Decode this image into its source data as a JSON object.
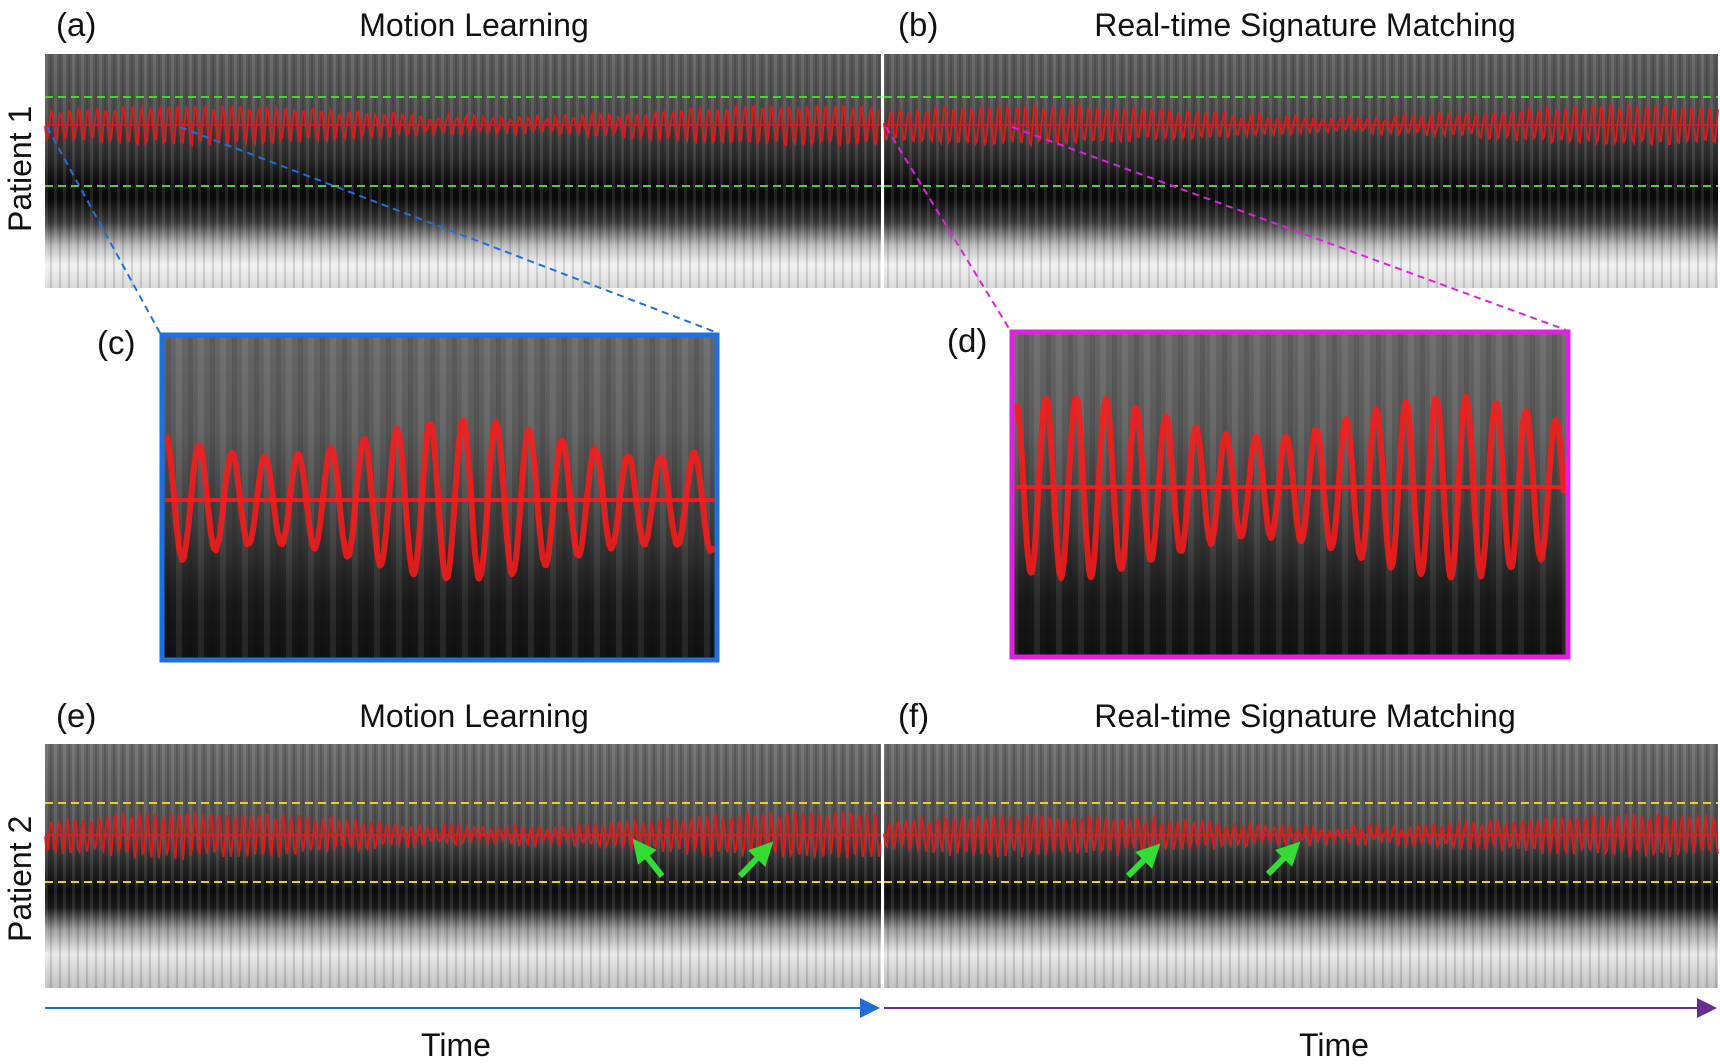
{
  "figure": {
    "colors": {
      "trace": "#e31a1c",
      "guide_patient1": "#4cd137",
      "guide_patient2": "#e8d21a",
      "zoom_c": "#1e6fe0",
      "zoom_d": "#e020e0",
      "arrow": "#33dd33",
      "time_axis_left": "#1f6fd6",
      "time_axis_right": "#6a2c91"
    },
    "panels": [
      {
        "id": "a",
        "label": "(a)",
        "title": "Motion Learning"
      },
      {
        "id": "b",
        "label": "(b)",
        "title": "Real-time Signature Matching"
      },
      {
        "id": "c",
        "label": "(c)",
        "title": ""
      },
      {
        "id": "d",
        "label": "(d)",
        "title": ""
      },
      {
        "id": "e",
        "label": "(e)",
        "title": "Motion Learning"
      },
      {
        "id": "f",
        "label": "(f)",
        "title": "Real-time Signature Matching"
      }
    ],
    "rows": [
      {
        "label": "Patient 1"
      },
      {
        "label": "Patient 2"
      }
    ],
    "axes": [
      {
        "label": "Time"
      },
      {
        "label": "Time"
      }
    ],
    "icons": [
      "arrow-icon",
      "arrow-icon",
      "arrow-icon",
      "arrow-icon"
    ]
  }
}
